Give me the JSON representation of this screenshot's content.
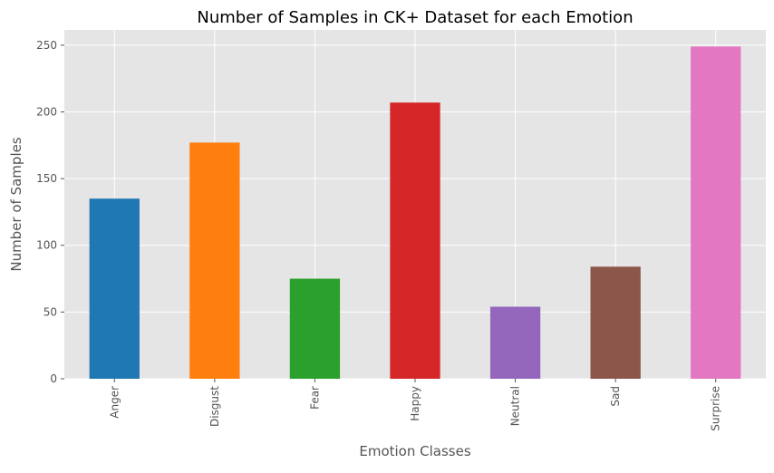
{
  "chart_data": {
    "type": "bar",
    "title": "Number of Samples in CK+ Dataset for each Emotion",
    "xlabel": "Emotion Classes",
    "ylabel": "Number of Samples",
    "categories": [
      "Anger",
      "Disgust",
      "Fear",
      "Happy",
      "Neutral",
      "Sad",
      "Surprise"
    ],
    "values": [
      135,
      177,
      75,
      207,
      54,
      84,
      249
    ],
    "colors": [
      "#1f77b4",
      "#ff7f0e",
      "#2ca02c",
      "#d62728",
      "#9467bd",
      "#8c564b",
      "#e377c2"
    ],
    "ylim": [
      0,
      261.45
    ],
    "yticks": [
      0,
      50,
      100,
      150,
      200,
      250
    ],
    "grid": true,
    "legend": "none",
    "background": "#e5e5e5"
  }
}
